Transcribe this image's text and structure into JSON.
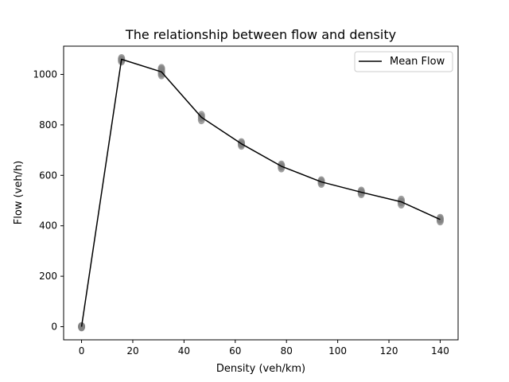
{
  "chart_data": {
    "type": "line",
    "title": "The relationship between flow and density",
    "xlabel": "Density (veh/km)",
    "ylabel": "Flow (veh/h)",
    "xlim": [
      -7,
      147
    ],
    "ylim": [
      -52,
      1112
    ],
    "xticks": [
      0,
      20,
      40,
      60,
      80,
      100,
      120,
      140
    ],
    "yticks": [
      0,
      200,
      400,
      600,
      800,
      1000
    ],
    "grid": false,
    "legend_position": "top-right",
    "colors": {
      "line": "#000000",
      "points": "#808080"
    },
    "series": [
      {
        "name": "Mean Flow",
        "x": [
          0,
          15.6,
          31.2,
          46.8,
          62.4,
          78,
          93.6,
          109.2,
          124.8,
          140
        ],
        "y": [
          0,
          1060,
          1010,
          830,
          725,
          636,
          574,
          533,
          495,
          425
        ]
      }
    ],
    "samples": [
      {
        "x": 0,
        "y": [
          -1,
          1,
          0
        ]
      },
      {
        "x": 15.6,
        "y": [
          1053,
          1063,
          1058
        ]
      },
      {
        "x": 31.2,
        "y": [
          998,
          1024,
          1012,
          1005,
          1019
        ]
      },
      {
        "x": 46.8,
        "y": [
          820,
          838,
          830
        ]
      },
      {
        "x": 62.4,
        "y": [
          719,
          730,
          725
        ]
      },
      {
        "x": 78,
        "y": [
          629,
          641,
          636
        ]
      },
      {
        "x": 93.6,
        "y": [
          568,
          579,
          574
        ]
      },
      {
        "x": 109.2,
        "y": [
          527,
          538,
          533
        ]
      },
      {
        "x": 124.8,
        "y": [
          486,
          502,
          495
        ]
      },
      {
        "x": 140,
        "y": [
          419,
          430,
          425
        ]
      }
    ]
  }
}
